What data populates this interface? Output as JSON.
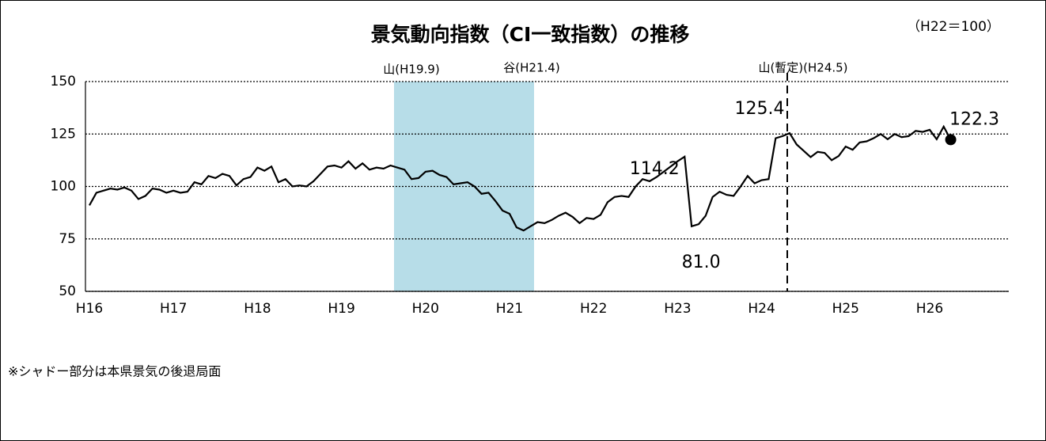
{
  "chart_data": {
    "type": "line",
    "title": "景気動向指数（CI一致指数）の推移",
    "subtitle": "（H22＝100）",
    "annotations": [
      "山(H19.9)",
      "谷(H21.4)",
      "山(暫定)(H24.5)"
    ],
    "footnote": "※シャドー部分は本県景気の後退局面",
    "categories": [
      "H16",
      null,
      null,
      null,
      null,
      null,
      null,
      null,
      null,
      null,
      null,
      null,
      "H17",
      null,
      null,
      null,
      null,
      null,
      null,
      null,
      null,
      null,
      null,
      null,
      "H18",
      null,
      null,
      null,
      null,
      null,
      null,
      null,
      null,
      null,
      null,
      null,
      "H19",
      null,
      null,
      null,
      null,
      null,
      null,
      null,
      null,
      null,
      null,
      null,
      "H20",
      null,
      null,
      null,
      null,
      null,
      null,
      null,
      null,
      null,
      null,
      null,
      "H21",
      null,
      null,
      null,
      null,
      null,
      null,
      null,
      null,
      null,
      null,
      null,
      "H22",
      null,
      null,
      null,
      null,
      null,
      null,
      null,
      null,
      null,
      null,
      null,
      "H23",
      null,
      null,
      null,
      null,
      null,
      null,
      null,
      null,
      null,
      null,
      null,
      "H24",
      null,
      null,
      null,
      null,
      null,
      null,
      null,
      null,
      null,
      null,
      null,
      "H25",
      null,
      null,
      null,
      null,
      null,
      null,
      null,
      null,
      null,
      null,
      null,
      "H26",
      null,
      null,
      null
    ],
    "values": [
      91,
      97,
      98,
      99,
      98.5,
      99.5,
      98,
      94,
      95.5,
      99,
      98.5,
      97,
      98,
      97,
      97.5,
      102,
      101,
      105,
      104,
      106,
      105,
      100.5,
      103.5,
      104.5,
      109,
      107.5,
      109.5,
      102,
      103.5,
      100,
      100.5,
      100,
      102.5,
      106,
      109.5,
      110,
      109,
      112,
      108.5,
      111,
      108,
      109,
      108.5,
      110,
      109,
      108,
      103.5,
      104,
      107,
      107.5,
      105.5,
      104.5,
      101,
      101.5,
      102,
      100,
      96.5,
      97,
      93,
      88.5,
      87,
      80.5,
      79,
      81,
      83,
      82.5,
      84,
      86,
      87.5,
      85.5,
      82.5,
      85,
      84.5,
      86.5,
      92.5,
      95,
      95.5,
      95,
      100,
      103.5,
      102.5,
      104.5,
      107,
      109.5,
      112,
      114.2,
      81.0,
      82,
      86,
      95,
      97.5,
      96,
      95.5,
      100,
      105,
      101.5,
      103,
      103.5,
      123,
      124,
      125.4,
      120,
      117,
      114,
      116.5,
      116,
      112.5,
      114.5,
      119,
      117.5,
      121,
      121.5,
      123,
      125,
      122.5,
      125,
      123.5,
      124,
      126.5,
      126,
      127,
      122.5,
      128.5,
      122.3
    ],
    "value_labels": [
      null,
      null,
      null,
      null,
      null,
      null,
      null,
      null,
      null,
      null,
      null,
      null,
      null,
      null,
      null,
      null,
      null,
      null,
      null,
      null,
      null,
      null,
      null,
      null,
      null,
      null,
      null,
      null,
      null,
      null,
      null,
      null,
      null,
      null,
      null,
      null,
      null,
      null,
      null,
      null,
      null,
      null,
      null,
      null,
      null,
      null,
      null,
      null,
      null,
      null,
      null,
      null,
      null,
      null,
      null,
      null,
      null,
      null,
      null,
      null,
      null,
      null,
      null,
      null,
      null,
      null,
      null,
      null,
      null,
      null,
      null,
      null,
      null,
      null,
      null,
      null,
      null,
      null,
      null,
      null,
      null,
      null,
      null,
      null,
      null,
      "114.2",
      "81.0",
      null,
      null,
      null,
      null,
      null,
      null,
      null,
      null,
      null,
      null,
      null,
      null,
      null,
      "125.4",
      null,
      null,
      null,
      null,
      null,
      null,
      null,
      null,
      null,
      null,
      null,
      null,
      null,
      null,
      null,
      null,
      null,
      null,
      null,
      null,
      null,
      null,
      "122.3"
    ],
    "color": "#000000",
    "ylim": [
      50,
      150
    ],
    "yticks": [
      50,
      75,
      100,
      125,
      150
    ],
    "grid": true
  }
}
